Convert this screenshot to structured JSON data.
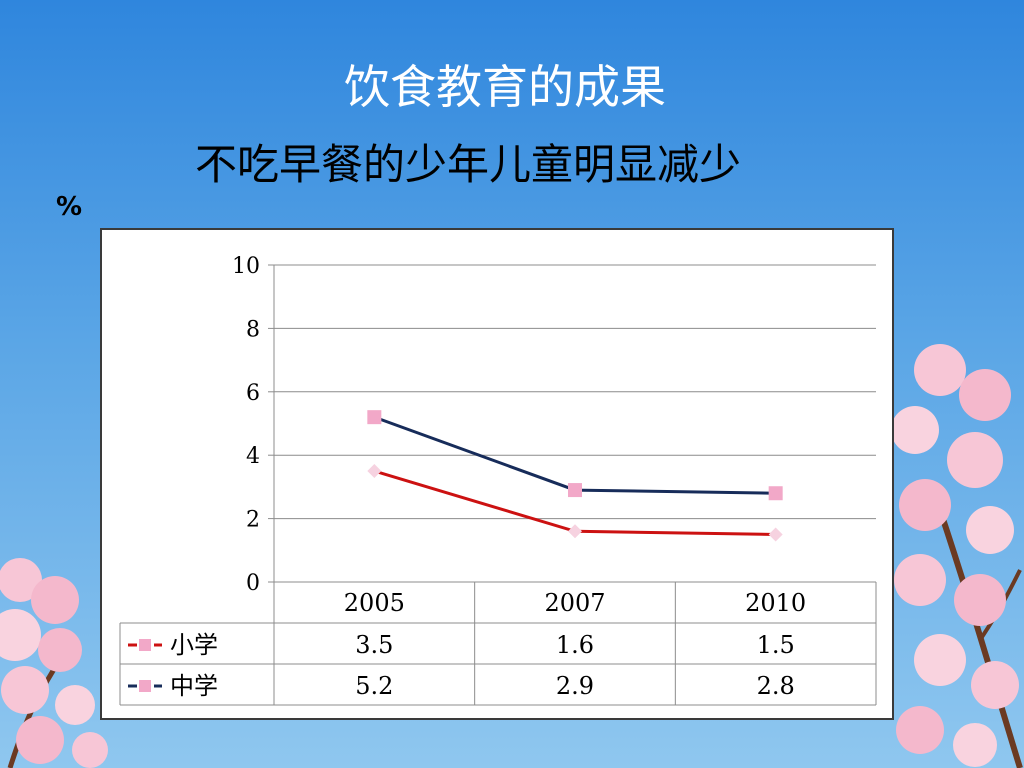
{
  "slide": {
    "title": "饮食教育的成果",
    "subtitle": "不吃早餐的少年儿童明显减少",
    "unit": "%"
  },
  "colors": {
    "primary_series": "#cc1111",
    "middle_series": "#172c5a",
    "marker": "#f2a8c8"
  },
  "chart_data": {
    "type": "line",
    "x": [
      "2005",
      "2007",
      "2010"
    ],
    "ylim": [
      0,
      10
    ],
    "yticks": [
      "0",
      "2",
      "4",
      "6",
      "8",
      "10"
    ],
    "grid": true,
    "series": [
      {
        "name": "小学",
        "values": [
          3.5,
          1.6,
          1.5
        ],
        "labels": [
          "3.5",
          "1.6",
          "1.5"
        ],
        "color": "#cc1111"
      },
      {
        "name": "中学",
        "values": [
          5.2,
          2.9,
          2.8
        ],
        "labels": [
          "5.2",
          "2.9",
          "2.8"
        ],
        "color": "#172c5a"
      }
    ],
    "data_table": true
  }
}
